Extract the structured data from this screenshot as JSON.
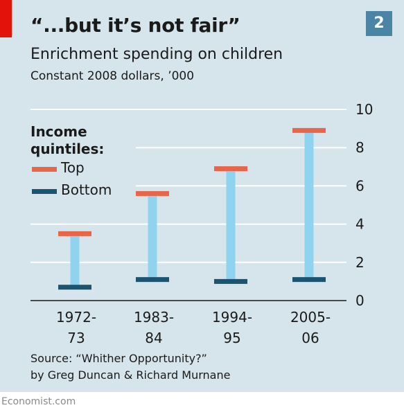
{
  "header": {
    "title": "“...but it’s not fair”",
    "chart_number": "2",
    "subtitle": "Enrichment spending on children",
    "units": "Constant 2008 dollars, ’000"
  },
  "legend": {
    "title_line1": "Income",
    "title_line2": "quintiles:",
    "items": [
      {
        "label": "Top",
        "color": "#e8654a"
      },
      {
        "label": "Bottom",
        "color": "#1b5470"
      }
    ]
  },
  "source": {
    "line1": "Source: “Whither Opportunity?”",
    "line2": "by Greg Duncan & Richard Murnane"
  },
  "brand": "Economist.com",
  "colors": {
    "background": "#d6e4ec",
    "top": "#e8654a",
    "bottom": "#1b5470",
    "range_bar": "#8fd3f0",
    "gridline": "#ffffff",
    "accent_red": "#e3120b",
    "number_box": "#4a85a5"
  },
  "chart_data": {
    "type": "range_bar",
    "categories": [
      [
        "1972-",
        "73"
      ],
      [
        "1983-",
        "84"
      ],
      [
        "1994-",
        "95"
      ],
      [
        "2005-",
        "06"
      ]
    ],
    "series": [
      {
        "name": "Top",
        "values": [
          3.5,
          5.6,
          6.9,
          8.9
        ]
      },
      {
        "name": "Bottom",
        "values": [
          0.7,
          1.1,
          1.0,
          1.1
        ]
      }
    ],
    "yticks": [
      0,
      2,
      4,
      6,
      8,
      10
    ],
    "ylim": [
      0,
      10
    ],
    "y_axis_position": "right",
    "grid": true,
    "legend_position": "top-left"
  }
}
